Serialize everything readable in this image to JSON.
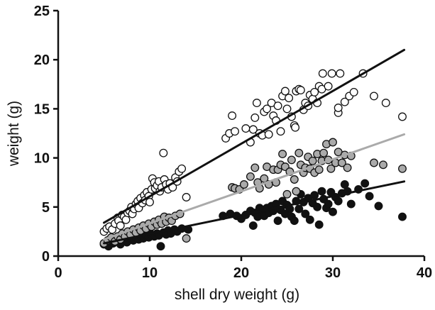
{
  "chart_data": {
    "type": "scatter",
    "title": "",
    "xlabel": "shell dry weight (g)",
    "ylabel": "weight (g)",
    "xlim": [
      0,
      40
    ],
    "ylim": [
      0,
      25
    ],
    "xticks": [
      "0",
      "10",
      "20",
      "30",
      "40"
    ],
    "yticks": [
      "0",
      "5",
      "10",
      "15",
      "20",
      "25"
    ],
    "grid": false,
    "legend": "none",
    "series": [
      {
        "marker": "open-circle",
        "fill": "#ffffff",
        "stroke": "#111111",
        "line_color": "#111111",
        "fit_line": [
          [
            5.0,
            3.4
          ],
          [
            37.8,
            21.0
          ]
        ],
        "points": [
          [
            5.0,
            2.5
          ],
          [
            5.3,
            2.8
          ],
          [
            5.6,
            3.0
          ],
          [
            5.9,
            2.7
          ],
          [
            6.2,
            3.3
          ],
          [
            6.5,
            3.9
          ],
          [
            6.6,
            3.6
          ],
          [
            6.8,
            3.1
          ],
          [
            7.0,
            4.2
          ],
          [
            7.2,
            4.0
          ],
          [
            7.4,
            3.7
          ],
          [
            7.6,
            4.4
          ],
          [
            7.8,
            4.6
          ],
          [
            8.0,
            5.0
          ],
          [
            8.1,
            4.3
          ],
          [
            8.3,
            4.8
          ],
          [
            8.5,
            5.3
          ],
          [
            8.7,
            5.6
          ],
          [
            8.8,
            4.9
          ],
          [
            9.0,
            5.9
          ],
          [
            9.2,
            5.4
          ],
          [
            9.4,
            6.2
          ],
          [
            9.5,
            5.7
          ],
          [
            9.7,
            6.5
          ],
          [
            9.9,
            6.1
          ],
          [
            10.0,
            5.5
          ],
          [
            10.2,
            6.8
          ],
          [
            10.3,
            7.9
          ],
          [
            10.5,
            7.5
          ],
          [
            10.6,
            6.9
          ],
          [
            10.8,
            7.2
          ],
          [
            11.0,
            7.6
          ],
          [
            11.1,
            6.6
          ],
          [
            11.3,
            7.0
          ],
          [
            11.5,
            10.5
          ],
          [
            11.6,
            7.8
          ],
          [
            11.8,
            7.3
          ],
          [
            12.0,
            6.8
          ],
          [
            12.2,
            7.4
          ],
          [
            12.5,
            7.0
          ],
          [
            12.8,
            8.0
          ],
          [
            13.0,
            7.6
          ],
          [
            13.2,
            8.6
          ],
          [
            13.5,
            8.9
          ],
          [
            14.0,
            6.0
          ],
          [
            18.3,
            12.0
          ],
          [
            18.7,
            12.5
          ],
          [
            19.0,
            14.3
          ],
          [
            19.3,
            12.7
          ],
          [
            20.5,
            13.0
          ],
          [
            21.0,
            11.6
          ],
          [
            21.3,
            12.9
          ],
          [
            21.5,
            14.1
          ],
          [
            21.7,
            15.6
          ],
          [
            22.0,
            12.5
          ],
          [
            22.3,
            12.3
          ],
          [
            22.5,
            14.7
          ],
          [
            22.8,
            15.0
          ],
          [
            23.0,
            12.4
          ],
          [
            23.3,
            15.6
          ],
          [
            23.5,
            14.3
          ],
          [
            23.8,
            13.8
          ],
          [
            24.0,
            15.3
          ],
          [
            24.3,
            12.7
          ],
          [
            24.5,
            16.3
          ],
          [
            24.8,
            16.8
          ],
          [
            25.0,
            15.0
          ],
          [
            25.2,
            16.1
          ],
          [
            25.5,
            14.2
          ],
          [
            25.8,
            13.3
          ],
          [
            25.9,
            13.1
          ],
          [
            26.0,
            16.8
          ],
          [
            26.3,
            17.0
          ],
          [
            26.5,
            16.9
          ],
          [
            26.8,
            14.9
          ],
          [
            27.0,
            15.6
          ],
          [
            27.3,
            15.3
          ],
          [
            27.5,
            16.4
          ],
          [
            27.8,
            16.0
          ],
          [
            28.0,
            16.7
          ],
          [
            28.3,
            15.6
          ],
          [
            28.5,
            17.3
          ],
          [
            28.8,
            17.0
          ],
          [
            28.9,
            18.6
          ],
          [
            29.5,
            17.3
          ],
          [
            29.9,
            18.6
          ],
          [
            30.8,
            18.6
          ],
          [
            30.6,
            14.6
          ],
          [
            30.6,
            15.1
          ],
          [
            31.3,
            15.7
          ],
          [
            31.8,
            16.3
          ],
          [
            32.3,
            16.7
          ],
          [
            33.3,
            18.6
          ],
          [
            34.5,
            16.3
          ],
          [
            35.8,
            15.6
          ],
          [
            37.6,
            14.2
          ]
        ]
      },
      {
        "marker": "filled-circle",
        "fill": "#aaaaaa",
        "stroke": "#111111",
        "line_color": "#aaaaaa",
        "fit_line": [
          [
            5.0,
            1.7
          ],
          [
            37.8,
            12.4
          ]
        ],
        "points": [
          [
            5.0,
            1.3
          ],
          [
            5.4,
            1.6
          ],
          [
            5.8,
            1.9
          ],
          [
            6.2,
            1.5
          ],
          [
            6.5,
            2.0
          ],
          [
            6.8,
            1.7
          ],
          [
            7.0,
            2.3
          ],
          [
            7.3,
            2.0
          ],
          [
            7.6,
            2.5
          ],
          [
            7.9,
            2.2
          ],
          [
            8.2,
            2.7
          ],
          [
            8.5,
            2.4
          ],
          [
            8.8,
            2.9
          ],
          [
            9.0,
            2.6
          ],
          [
            9.3,
            3.1
          ],
          [
            9.6,
            2.8
          ],
          [
            9.9,
            3.3
          ],
          [
            10.2,
            3.0
          ],
          [
            10.5,
            3.5
          ],
          [
            10.8,
            3.2
          ],
          [
            11.0,
            3.7
          ],
          [
            11.3,
            3.3
          ],
          [
            11.6,
            4.0
          ],
          [
            11.8,
            3.5
          ],
          [
            12.1,
            3.9
          ],
          [
            12.4,
            3.6
          ],
          [
            12.8,
            4.1
          ],
          [
            13.3,
            4.3
          ],
          [
            14.0,
            1.8
          ],
          [
            19.0,
            7.0
          ],
          [
            19.3,
            6.9
          ],
          [
            19.8,
            6.8
          ],
          [
            20.3,
            7.3
          ],
          [
            21.0,
            8.1
          ],
          [
            21.5,
            9.0
          ],
          [
            21.8,
            7.5
          ],
          [
            22.0,
            6.9
          ],
          [
            22.5,
            7.9
          ],
          [
            22.8,
            9.1
          ],
          [
            23.0,
            7.3
          ],
          [
            23.5,
            8.8
          ],
          [
            23.8,
            7.5
          ],
          [
            24.0,
            8.8
          ],
          [
            24.3,
            9.3
          ],
          [
            24.5,
            10.4
          ],
          [
            24.8,
            9.1
          ],
          [
            25.0,
            6.3
          ],
          [
            25.3,
            8.6
          ],
          [
            25.5,
            9.8
          ],
          [
            25.8,
            7.8
          ],
          [
            26.0,
            6.6
          ],
          [
            26.3,
            10.5
          ],
          [
            26.5,
            9.3
          ],
          [
            26.8,
            8.5
          ],
          [
            27.0,
            9.0
          ],
          [
            27.3,
            10.1
          ],
          [
            27.5,
            8.9
          ],
          [
            27.8,
            9.7
          ],
          [
            28.0,
            8.5
          ],
          [
            28.3,
            10.4
          ],
          [
            28.5,
            8.8
          ],
          [
            28.8,
            9.7
          ],
          [
            29.0,
            10.5
          ],
          [
            29.3,
            11.4
          ],
          [
            29.5,
            9.8
          ],
          [
            29.8,
            8.9
          ],
          [
            30.0,
            11.6
          ],
          [
            30.3,
            9.5
          ],
          [
            30.6,
            10.6
          ],
          [
            31.0,
            9.5
          ],
          [
            31.3,
            10.3
          ],
          [
            31.6,
            9.0
          ],
          [
            32.0,
            10.2
          ],
          [
            34.5,
            9.5
          ],
          [
            35.5,
            9.3
          ],
          [
            37.6,
            8.9
          ]
        ]
      },
      {
        "marker": "filled-circle",
        "fill": "#111111",
        "stroke": "#111111",
        "line_color": "#111111",
        "fit_line": [
          [
            5.0,
            1.3
          ],
          [
            37.8,
            7.6
          ]
        ],
        "points": [
          [
            5.0,
            1.2
          ],
          [
            5.5,
            1.0
          ],
          [
            6.0,
            1.3
          ],
          [
            6.5,
            1.5
          ],
          [
            6.8,
            1.2
          ],
          [
            7.2,
            1.6
          ],
          [
            7.5,
            1.4
          ],
          [
            7.8,
            1.8
          ],
          [
            8.2,
            1.6
          ],
          [
            8.5,
            1.9
          ],
          [
            8.8,
            1.7
          ],
          [
            9.0,
            2.0
          ],
          [
            9.3,
            1.8
          ],
          [
            9.6,
            2.1
          ],
          [
            9.9,
            1.9
          ],
          [
            10.2,
            2.2
          ],
          [
            10.5,
            2.0
          ],
          [
            10.8,
            2.3
          ],
          [
            11.0,
            2.1
          ],
          [
            11.2,
            1.0
          ],
          [
            11.5,
            2.4
          ],
          [
            11.8,
            2.2
          ],
          [
            12.0,
            2.6
          ],
          [
            12.3,
            2.3
          ],
          [
            12.7,
            2.7
          ],
          [
            13.0,
            2.5
          ],
          [
            13.5,
            2.8
          ],
          [
            14.2,
            2.7
          ],
          [
            18.0,
            4.1
          ],
          [
            18.8,
            4.3
          ],
          [
            19.5,
            4.1
          ],
          [
            20.0,
            3.8
          ],
          [
            20.5,
            4.2
          ],
          [
            21.0,
            4.6
          ],
          [
            21.3,
            3.1
          ],
          [
            21.5,
            4.4
          ],
          [
            21.8,
            4.0
          ],
          [
            22.0,
            4.9
          ],
          [
            22.3,
            4.6
          ],
          [
            22.5,
            4.1
          ],
          [
            22.8,
            4.9
          ],
          [
            23.0,
            4.4
          ],
          [
            23.3,
            5.1
          ],
          [
            23.5,
            4.6
          ],
          [
            23.8,
            5.3
          ],
          [
            24.0,
            3.6
          ],
          [
            24.3,
            4.7
          ],
          [
            24.5,
            5.6
          ],
          [
            24.8,
            4.3
          ],
          [
            25.0,
            5.2
          ],
          [
            25.3,
            4.8
          ],
          [
            25.5,
            4.0
          ],
          [
            25.8,
            3.6
          ],
          [
            26.0,
            5.6
          ],
          [
            26.3,
            4.8
          ],
          [
            26.5,
            6.3
          ],
          [
            26.8,
            5.5
          ],
          [
            27.0,
            4.3
          ],
          [
            27.3,
            5.9
          ],
          [
            27.5,
            3.7
          ],
          [
            27.8,
            5.4
          ],
          [
            28.0,
            6.2
          ],
          [
            28.3,
            5.0
          ],
          [
            28.5,
            3.2
          ],
          [
            28.8,
            6.6
          ],
          [
            29.0,
            5.8
          ],
          [
            29.3,
            4.9
          ],
          [
            29.5,
            5.3
          ],
          [
            29.8,
            6.5
          ],
          [
            30.0,
            4.5
          ],
          [
            30.3,
            6.0
          ],
          [
            30.6,
            5.6
          ],
          [
            31.0,
            6.4
          ],
          [
            31.3,
            7.3
          ],
          [
            31.6,
            6.6
          ],
          [
            32.0,
            5.3
          ],
          [
            32.8,
            6.8
          ],
          [
            33.5,
            7.4
          ],
          [
            34.0,
            6.1
          ],
          [
            35.0,
            5.1
          ],
          [
            37.6,
            4.0
          ]
        ]
      }
    ]
  }
}
